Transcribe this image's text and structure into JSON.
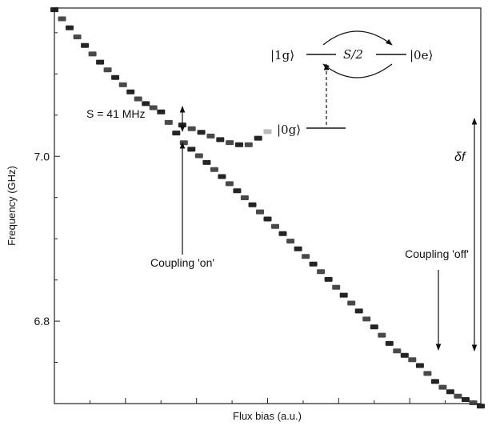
{
  "chart_data": {
    "type": "heatmap",
    "xlabel": "Flux bias (a.u.)",
    "ylabel": "Frequency (GHz)",
    "ylim": [
      6.7,
      7.18
    ],
    "xlim": [
      0,
      1
    ],
    "y_ticks": [
      {
        "value": 7.0,
        "label": "7.0"
      },
      {
        "value": 6.8,
        "label": "6.8"
      }
    ],
    "grid": false,
    "x": [
      0.0,
      0.05,
      0.1,
      0.15,
      0.2,
      0.25,
      0.3,
      0.35,
      0.4,
      0.45,
      0.5,
      0.55,
      0.6,
      0.65,
      0.7,
      0.75,
      0.8,
      0.85,
      0.9,
      0.95,
      1.0
    ],
    "series": [
      {
        "name": "",
        "values": [
          7.178,
          7.147,
          7.118,
          7.092,
          7.068,
          7.054,
          7.018,
          6.996,
          6.972,
          6.948,
          6.924,
          6.899,
          6.873,
          6.847,
          6.82,
          6.793,
          6.765,
          6.75,
          6.723,
          6.708,
          6.697
        ]
      },
      {
        "name": "",
        "values": [
          null,
          null,
          null,
          null,
          null,
          null,
          7.038,
          7.028,
          7.018,
          7.012,
          7.03,
          null,
          null,
          null,
          null,
          null,
          null,
          null,
          null,
          null,
          null
        ]
      }
    ]
  },
  "annotations": {
    "coupling_strength": "S = 41 MHz",
    "coupling_on": "Coupling 'on'",
    "coupling_off": "Coupling 'off'",
    "detuning": "δf",
    "state_1g": "|1g⟩",
    "state_0e": "|0e⟩",
    "state_0g": "|0g⟩",
    "half_coupling": "S/2"
  }
}
